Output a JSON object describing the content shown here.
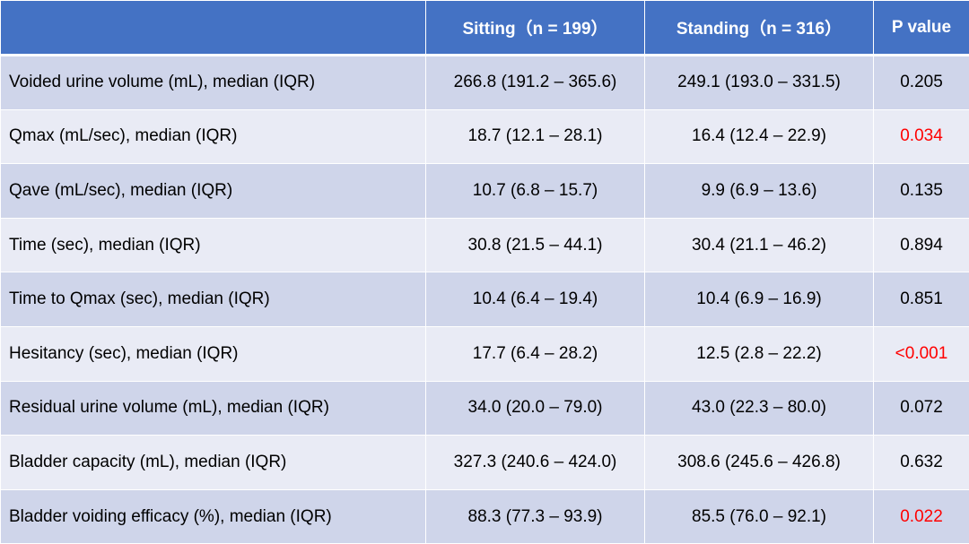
{
  "table": {
    "headers": [
      "",
      "Sitting（n = 199）",
      "Standing（n = 316）",
      "P value"
    ],
    "rows": [
      {
        "parameter": "Voided urine volume (mL), median (IQR)",
        "sitting": "266.8 (191.2 – 365.6)",
        "standing": "249.1 (193.0 – 331.5)",
        "p_value": "0.205",
        "significant": false
      },
      {
        "parameter": "Qmax (mL/sec), median (IQR)",
        "sitting": "18.7 (12.1 – 28.1)",
        "standing": "16.4 (12.4 – 22.9)",
        "p_value": "0.034",
        "significant": true
      },
      {
        "parameter": "Qave (mL/sec), median (IQR)",
        "sitting": "10.7 (6.8 – 15.7)",
        "standing": "9.9 (6.9 – 13.6)",
        "p_value": "0.135",
        "significant": false
      },
      {
        "parameter": "Time (sec), median (IQR)",
        "sitting": "30.8 (21.5 – 44.1)",
        "standing": "30.4 (21.1 – 46.2)",
        "p_value": "0.894",
        "significant": false
      },
      {
        "parameter": "Time to Qmax (sec), median (IQR)",
        "sitting": "10.4 (6.4 – 19.4)",
        "standing": "10.4 (6.9 – 16.9)",
        "p_value": "0.851",
        "significant": false
      },
      {
        "parameter": "Hesitancy (sec), median (IQR)",
        "sitting": "17.7 (6.4 – 28.2)",
        "standing": "12.5 (2.8 – 22.2)",
        "p_value": "<0.001",
        "significant": true
      },
      {
        "parameter": "Residual urine volume (mL), median (IQR)",
        "sitting": "34.0 (20.0 – 79.0)",
        "standing": "43.0 (22.3 – 80.0)",
        "p_value": "0.072",
        "significant": false
      },
      {
        "parameter": "Bladder capacity (mL), median (IQR)",
        "sitting": "327.3 (240.6 – 424.0)",
        "standing": "308.6 (245.6 – 426.8)",
        "p_value": "0.632",
        "significant": false
      },
      {
        "parameter": "Bladder voiding efficacy (%), median (IQR)",
        "sitting": "88.3 (77.3 – 93.9)",
        "standing": "85.5 (76.0 – 92.1)",
        "p_value": "0.022",
        "significant": true
      }
    ]
  },
  "colors": {
    "header_bg": "#4472c4",
    "row_odd_bg": "#cfd5ea",
    "row_even_bg": "#e9ebf5",
    "significant_text": "#ff0000"
  }
}
